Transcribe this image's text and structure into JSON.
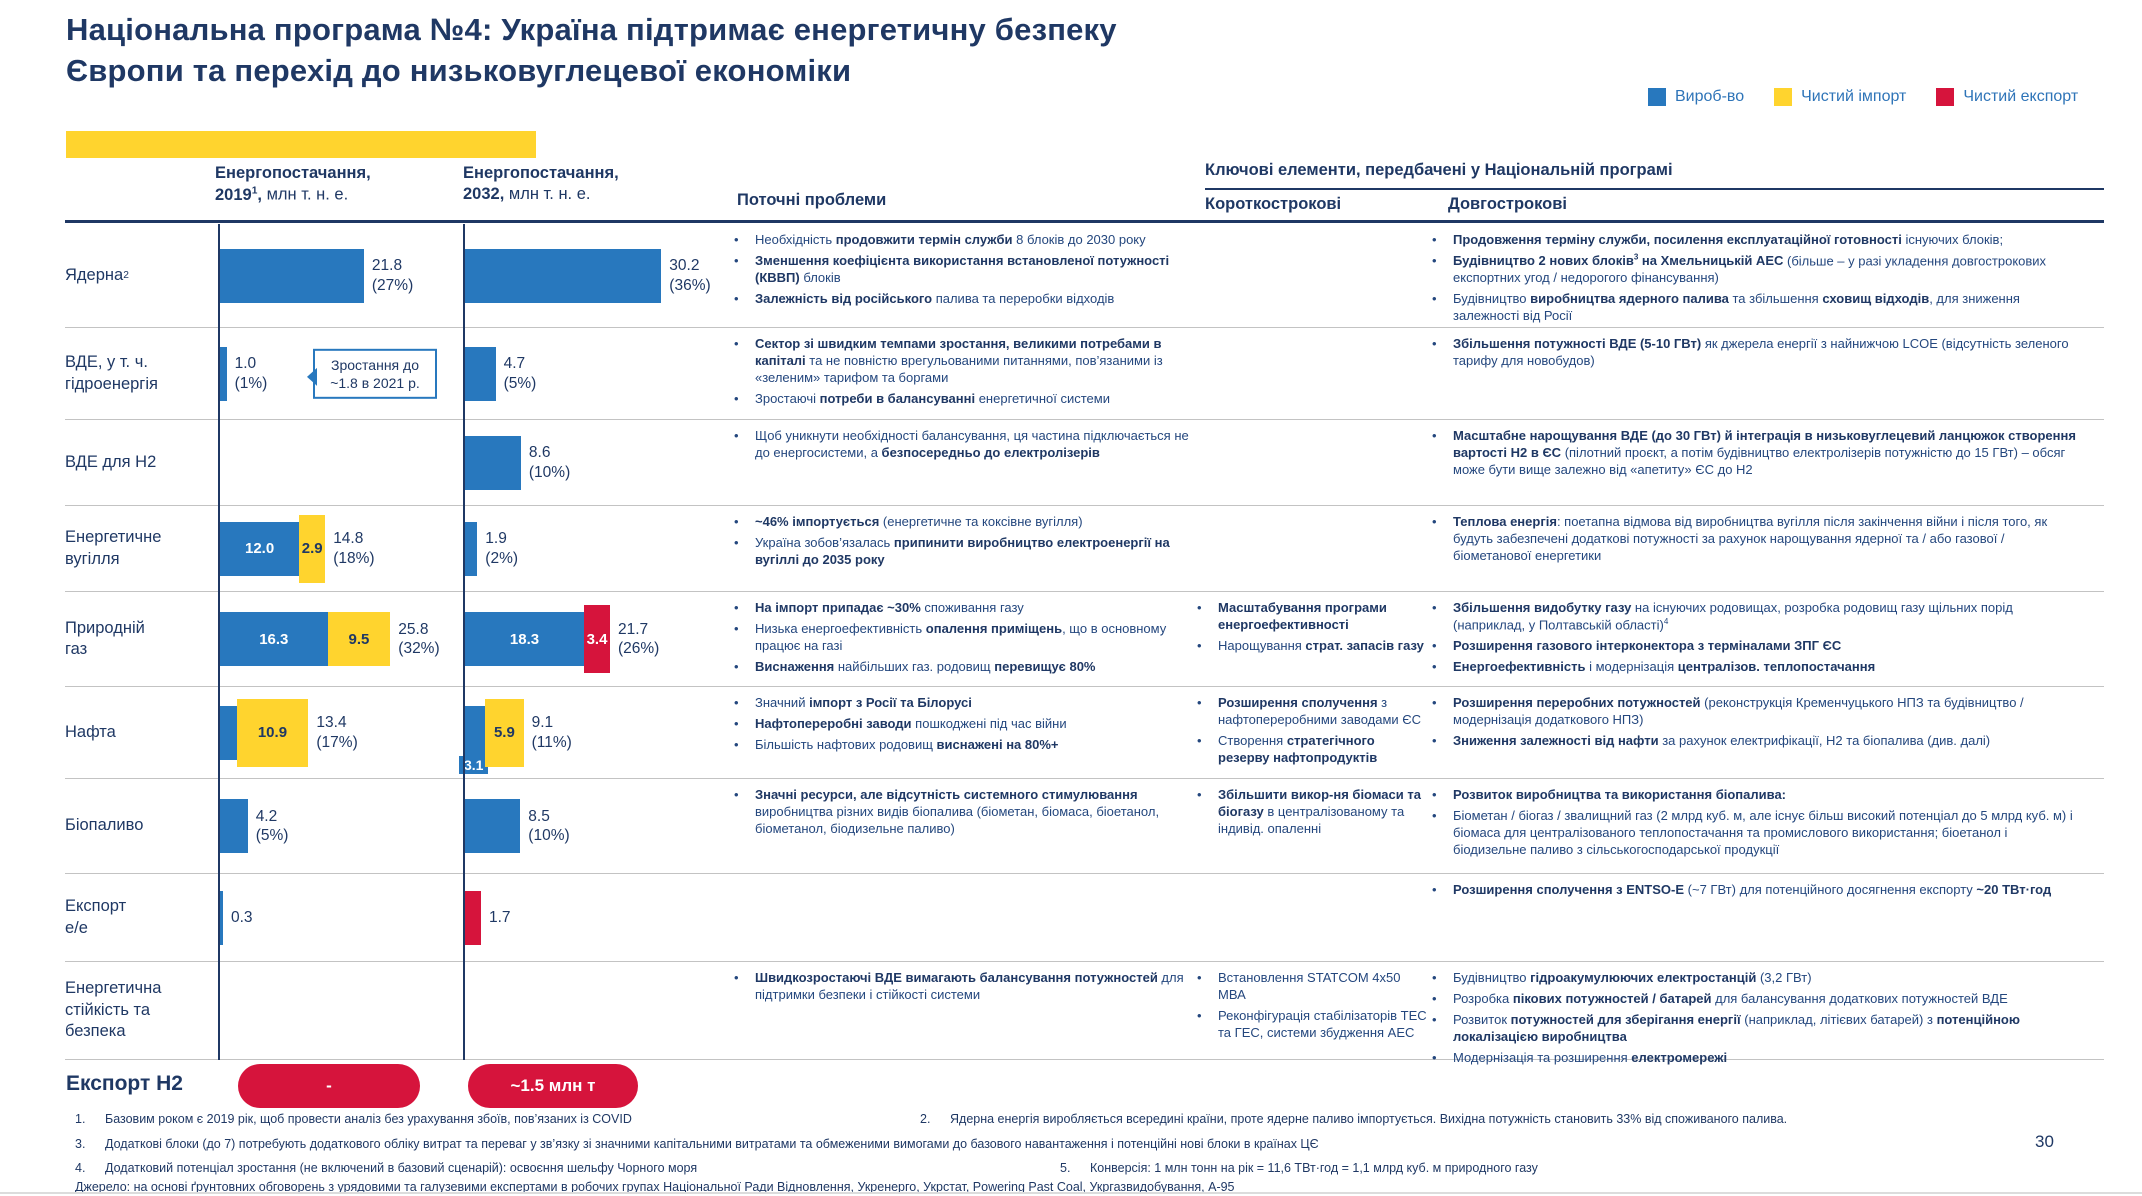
{
  "slide": {
    "title": "Національна програма №4: Україна підтримає енергетичну безпеку Європи та перехід до низьковуглецевої економіки",
    "page_number": "30"
  },
  "colors": {
    "bar_blue": "#2878BE",
    "bar_yellow": "#FFD42E",
    "bar_red": "#D6143C",
    "navy_text": "#1F3864",
    "separator_gray": "#C3C3C3"
  },
  "legend": [
    {
      "label": "Вироб-во",
      "color": "#2878BE"
    },
    {
      "label": "Чистий імпорт",
      "color": "#FFD42E"
    },
    {
      "label": "Чистий експорт",
      "color": "#D6143C"
    }
  ],
  "table": {
    "headers": {
      "supply_2019": "<b>Енергопостачання,<br>2019<sup>1</sup>,</b> млн т. н. е.",
      "supply_2032": "<b>Енергопостачання,<br>2032,</b> млн т. н. е.",
      "problems": "Поточні проблеми",
      "key_elements": "Ключові елементи, передбачені у Національній програмі",
      "short_term": "Короткострокові",
      "long_term": "Довгострокові"
    },
    "rows": [
      {
        "label": "Ядерна<sup>2</sup>",
        "chart2019": {
          "segments": [
            {
              "color": "blue",
              "value": 21.8
            }
          ],
          "label": "21.8<br>(27%)"
        },
        "chart2032": {
          "segments": [
            {
              "color": "blue",
              "value": 30.2
            }
          ],
          "label": "30.2<br>(36%)"
        },
        "problems": [
          "Необхідність <b>продовжити термін служби</b> 8 блоків до 2030 року",
          "<b>Зменшення коефіцієнта використання встановленої потужності (КВВП)</b> блоків",
          "<b>Залежність від російського</b> палива та переробки відходів"
        ],
        "short_term": [],
        "long_term": [
          "<b>Продовження терміну служби, посилення експлуатаційної готовності</b> існуючих блоків;",
          "<b>Будівництво 2 нових блоків<sup>3</sup> на Хмельницькій АЕС</b> (більше – у разі укладення довгострокових експортних угод / недорогого фінансування)",
          "Будівництво <b>виробництва ядерного палива</b> та збільшення <b>сховищ відходів</b>, для зниження залежності від Росії"
        ]
      },
      {
        "label": "ВДЕ, у т. ч.<br>гідроенергія",
        "chart2019": {
          "segments": [
            {
              "color": "blue",
              "value": 1.0
            }
          ],
          "label": "1.0<br>(1%)",
          "callout": "Зростання до ~1.8 в 2021 р."
        },
        "chart2032": {
          "segments": [
            {
              "color": "blue",
              "value": 4.7
            }
          ],
          "label": "4.7<br>(5%)"
        },
        "problems": [
          "<b>Сектор зі швидким темпами зростання, великими потребами в капіталі</b> та не повністю врегульованими питаннями, пов’язаними із «зеленим» тарифом та боргами",
          "Зростаючі <b>потреби в балансуванні</b> енергетичної системи"
        ],
        "short_term": [],
        "long_term": [
          "<b>Збільшення потужності ВДЕ (5-10 ГВт)</b> як джерела енергії з найнижчою LCOE (відсутність зеленого тарифу для новобудов)"
        ]
      },
      {
        "label": "ВДЕ для H2",
        "chart2019": null,
        "chart2032": {
          "segments": [
            {
              "color": "blue",
              "value": 8.6
            }
          ],
          "label": "8.6<br>(10%)"
        },
        "problems": [
          "Щоб уникнути необхідності балансування, ця частина підключається не до енергосистеми, а <b>безпосередньо до електролізерів</b>"
        ],
        "short_term": [],
        "long_term": [
          "<b>Масштабне нарощування ВДЕ (до 30 ГВт) й інтеграція в низьковуглецевий ланцюжок створення вартості H2 в ЄС</b> (пілотний проєкт, а потім будівництво електролізерів потужністю до 15 ГВт) – обсяг може бути вище залежно від «апетиту» ЄС до H2"
        ]
      },
      {
        "label": "Енергетичне<br>вугілля",
        "chart2019": {
          "segments": [
            {
              "color": "blue",
              "value": 12.0,
              "label": "12.0"
            },
            {
              "color": "yellow",
              "value": 2.9,
              "label": "2.9",
              "tall": true
            }
          ],
          "label": "14.8<br>(18%)"
        },
        "chart2032": {
          "segments": [
            {
              "color": "blue",
              "value": 1.9
            }
          ],
          "label": "1.9<br>(2%)"
        },
        "problems": [
          "<b>~46% імпортується</b> (енергетичне та коксівне вугілля)",
          "Україна зобов’язалась <b>припинити виробництво електроенергії на вугіллі до 2035 року</b>"
        ],
        "short_term": [],
        "long_term": [
          "<b>Теплова енергія</b>: поетапна відмова від виробництва вугілля після закінчення війни і після того, як будуть забезпечені додаткові потужності за рахунок нарощування ядерної та / або газової / біометанової енергетики"
        ]
      },
      {
        "label": "Природній<br>газ",
        "chart2019": {
          "segments": [
            {
              "color": "blue",
              "value": 16.3,
              "label": "16.3"
            },
            {
              "color": "yellow",
              "value": 9.5,
              "label": "9.5"
            }
          ],
          "label": "25.8<br>(32%)"
        },
        "chart2032": {
          "segments": [
            {
              "color": "blue",
              "value": 18.3,
              "label": "18.3"
            },
            {
              "color": "red",
              "value": 3.4,
              "label": "3.4",
              "tall": true
            }
          ],
          "label": "21.7<br>(26%)"
        },
        "problems": [
          "<b>На імпорт припадає ~30%</b> споживання газу",
          "Низька енергоефективність <b>опалення приміщень</b>, що в основному працює на газі",
          "<b>Виснаження</b> найбільших газ. родовищ <b>перевищує 80%</b>"
        ],
        "short_term": [
          "<b>Масштабування програми енергоефективності</b>",
          "Нарощування <b>страт. запасів газу</b>"
        ],
        "long_term": [
          "<b>Збільшення видобутку газу</b> на існуючих родовищах, розробка родовищ газу щільних порід (наприклад, у Полтавській області)<sup>4</sup>",
          "<b>Розширення газового інтерконектора з терміналами ЗПГ ЄС</b>",
          "<b>Енергоефективність</b> і модернізація <b>централізов. теплопостачання</b>"
        ]
      },
      {
        "label": "Нафта",
        "chart2019": {
          "segments": [
            {
              "color": "blue",
              "value": 2.5
            },
            {
              "color": "yellow",
              "value": 10.9,
              "label": "10.9",
              "tall": true
            }
          ],
          "label": "13.4<br>(17%)"
        },
        "chart2032": {
          "segments": [
            {
              "color": "blue",
              "value": 3.1,
              "label": "3.1",
              "labelPos": "below"
            },
            {
              "color": "yellow",
              "value": 5.9,
              "label": "5.9",
              "tall": true
            }
          ],
          "label": "9.1<br>(11%)"
        },
        "problems": [
          "Значний <b>імпорт з Росії та Білорусі</b>",
          "<b>Нафтопереробні заводи</b> пошкоджені під час війни",
          "Більшість нафтових родовищ <b>виснажені на 80%+</b>"
        ],
        "short_term": [
          "<b>Розширення сполучення</b> з нафтопереробними заводами ЄС",
          "Створення <b>стратегічного резерву нафтопродуктів</b>"
        ],
        "long_term": [
          "<b>Розширення переробних потужностей</b> (реконструкція Кременчуцького НПЗ та будівництво / модернізація додаткового НПЗ)",
          "<b>Зниження залежності від нафти</b> за рахунок електрифікації, H2 та біопалива (див. далі)"
        ]
      },
      {
        "label": "Біопаливо",
        "chart2019": {
          "segments": [
            {
              "color": "blue",
              "value": 4.2
            }
          ],
          "label": "4.2<br>(5%)"
        },
        "chart2032": {
          "segments": [
            {
              "color": "blue",
              "value": 8.5
            }
          ],
          "label": "8.5<br>(10%)"
        },
        "problems": [
          "<b>Значні ресурси, але відсутність системного стимулювання</b> виробництва різних видів біопалива (біометан, біомаса, біоетанол, біометанол, біодизельне паливо)"
        ],
        "short_term": [
          "<b>Збільшити викор-ня біомаси та біогазу</b> в централізованому та індивід. опаленні"
        ],
        "long_term": [
          "<b>Розвиток виробництва та використання біопалива:</b>",
          "Біометан / біогаз / звалищний газ (2 млрд куб. м, але існує більш високий потенціал до 5 млрд куб. м) і біомаса для централізованого теплопостачання та промислового використання; біоетанол і біодизельне паливо з сільськогосподарської продукції"
        ]
      },
      {
        "label": "Експорт<br>е/е",
        "chart2019": {
          "segments": [
            {
              "color": "blue",
              "value": 0.3
            }
          ],
          "label": "0.3"
        },
        "chart2032": {
          "segments": [
            {
              "color": "red",
              "value": 1.7,
              "minw": 16
            }
          ],
          "label": "1.7"
        },
        "problems": [],
        "short_term": [],
        "long_term": [
          "<b>Розширення сполучення з ENTSO-E</b> (~7 ГВт) для потенційного досягнення експорту <b>~20 ТВт·год</b>"
        ]
      },
      {
        "label": "Енергетична<br>стійкість та<br>безпека",
        "chart2019": null,
        "chart2032": null,
        "problems": [
          "<b>Швидкозростаючі ВДЕ вимагають балансування потужностей</b> для підтримки безпеки і стійкості системи"
        ],
        "short_term": [
          "Встановлення STATCOM 4x50 МВА",
          "Реконфігурація стабілізаторів ТЕС та ГЕС, системи збудження АЕС"
        ],
        "long_term": [
          "Будівництво <b>гідроакумулюючих електростанцій</b> (3,2 ГВт)",
          "Розробка <b>пікових потужностей / батарей</b> для балансування додаткових потужностей ВДЕ",
          "Розвиток <b>потужностей для зберігання енергії</b> (наприклад, літієвих батарей) з <b>потенційною локалізацією виробництва</b>",
          "Модернізація та розширення <b>електромережі</b>"
        ]
      }
    ]
  },
  "export_h2": {
    "label": "Експорт H2",
    "value_2019": "-",
    "value_2032": "~1.5 млн т"
  },
  "footnotes": [
    {
      "num": "1.",
      "text": "Базовим роком є 2019 рік, щоб провести аналіз без урахування збоїв, пов’язаних із COVID"
    },
    {
      "num": "2.",
      "text": "Ядерна енергія виробляється всередині країни, проте ядерне паливо імпортується. Вихідна потужність становить 33% від споживаного палива."
    },
    {
      "num": "3.",
      "text": "Додаткові блоки (до 7) потребують додаткового обліку витрат та переваг у зв’язку зі значними капітальними витратами та обмеженими вимогами до базового навантаження і потенційні нові блоки в країнах ЦЄ"
    },
    {
      "num": "4.",
      "text": "Додатковий потенціал зростання (не включений в базовий сценарій): освоєння шельфу Чорного моря"
    },
    {
      "num": "5.",
      "text": "Конверсія: 1 млн тонн на рік = 11,6 ТВт·год = 1,1 млрд куб. м природного газу"
    }
  ],
  "source": "Джерело: на основі ґрунтовних обговорень з урядовими та галузевими експертами в робочих групах Національної Ради Відновлення, Укренерго, Укрстат, Powering Past Coal, Укргазвидобування, А-95"
}
